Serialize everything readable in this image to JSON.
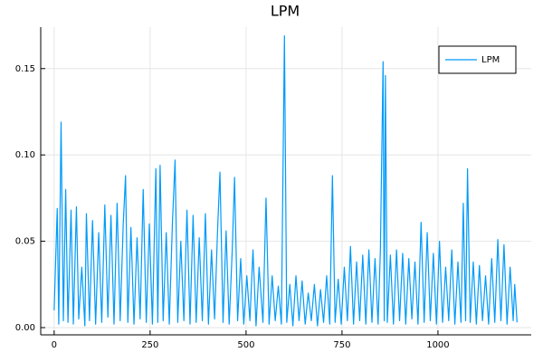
{
  "chart_data": {
    "type": "line",
    "title": "LPM",
    "x": [
      0,
      8,
      12,
      18,
      24,
      30,
      36,
      44,
      50,
      58,
      64,
      72,
      80,
      84,
      92,
      100,
      108,
      116,
      124,
      132,
      140,
      148,
      156,
      164,
      172,
      180,
      186,
      192,
      200,
      208,
      216,
      224,
      232,
      240,
      248,
      256,
      265,
      270,
      276,
      284,
      292,
      300,
      308,
      315,
      322,
      330,
      338,
      346,
      354,
      362,
      370,
      378,
      386,
      394,
      402,
      410,
      418,
      426,
      432,
      440,
      448,
      456,
      464,
      470,
      478,
      486,
      494,
      502,
      510,
      518,
      526,
      534,
      544,
      552,
      560,
      568,
      576,
      584,
      592,
      600,
      606,
      614,
      622,
      630,
      638,
      646,
      654,
      662,
      670,
      678,
      686,
      694,
      702,
      710,
      718,
      725,
      732,
      740,
      748,
      756,
      764,
      772,
      780,
      788,
      796,
      804,
      812,
      820,
      828,
      836,
      844,
      850,
      857,
      860,
      863,
      868,
      876,
      884,
      892,
      900,
      908,
      916,
      924,
      932,
      940,
      948,
      956,
      964,
      972,
      980,
      988,
      996,
      1004,
      1012,
      1020,
      1028,
      1036,
      1044,
      1052,
      1060,
      1066,
      1072,
      1077,
      1084,
      1092,
      1100,
      1108,
      1116,
      1124,
      1132,
      1140,
      1148,
      1156,
      1164,
      1172,
      1180,
      1188,
      1196,
      1200,
      1206
    ],
    "series": [
      {
        "name": "LPM",
        "color": "#009af9",
        "values": [
          0.01,
          0.069,
          0.002,
          0.119,
          0.004,
          0.08,
          0.003,
          0.068,
          0.002,
          0.07,
          0.005,
          0.035,
          0.001,
          0.066,
          0.004,
          0.062,
          0.002,
          0.055,
          0.003,
          0.071,
          0.006,
          0.065,
          0.002,
          0.072,
          0.004,
          0.06,
          0.088,
          0.003,
          0.058,
          0.002,
          0.052,
          0.005,
          0.08,
          0.003,
          0.06,
          0.002,
          0.092,
          0.003,
          0.094,
          0.004,
          0.055,
          0.002,
          0.06,
          0.097,
          0.003,
          0.05,
          0.004,
          0.068,
          0.002,
          0.065,
          0.003,
          0.052,
          0.004,
          0.066,
          0.002,
          0.045,
          0.005,
          0.058,
          0.09,
          0.003,
          0.056,
          0.002,
          0.045,
          0.087,
          0.004,
          0.04,
          0.002,
          0.03,
          0.004,
          0.045,
          0.001,
          0.035,
          0.003,
          0.075,
          0.002,
          0.03,
          0.004,
          0.024,
          0.002,
          0.169,
          0.003,
          0.025,
          0.001,
          0.03,
          0.004,
          0.027,
          0.002,
          0.02,
          0.004,
          0.025,
          0.001,
          0.022,
          0.003,
          0.03,
          0.002,
          0.088,
          0.003,
          0.028,
          0.002,
          0.035,
          0.004,
          0.047,
          0.002,
          0.038,
          0.004,
          0.042,
          0.002,
          0.045,
          0.003,
          0.04,
          0.002,
          0.045,
          0.154,
          0.004,
          0.146,
          0.003,
          0.042,
          0.002,
          0.045,
          0.004,
          0.043,
          0.002,
          0.04,
          0.005,
          0.038,
          0.002,
          0.061,
          0.003,
          0.055,
          0.004,
          0.043,
          0.002,
          0.05,
          0.003,
          0.035,
          0.004,
          0.045,
          0.002,
          0.038,
          0.003,
          0.072,
          0.004,
          0.092,
          0.003,
          0.038,
          0.002,
          0.036,
          0.004,
          0.03,
          0.002,
          0.04,
          0.003,
          0.051,
          0.004,
          0.048,
          0.002,
          0.035,
          0.004,
          0.025,
          0.003
        ]
      }
    ],
    "xlim": [
      -35,
      1243
    ],
    "xticks": [
      0,
      250,
      500,
      750,
      1000
    ],
    "ylim": [
      -0.0042,
      0.174
    ],
    "yticks": [
      {
        "value": 0,
        "label": "0.00"
      },
      0.05,
      {
        "value": 0.1,
        "label": "0.10"
      },
      0.15
    ],
    "grid": true,
    "legend": "top-right"
  }
}
